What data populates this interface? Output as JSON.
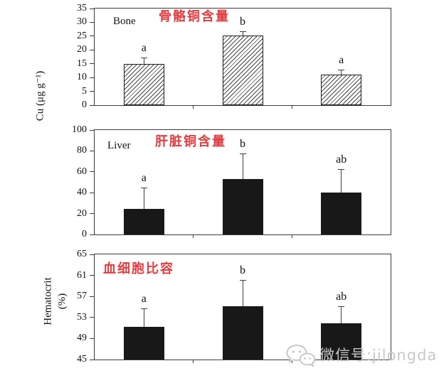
{
  "figure": {
    "background": "#ffffff",
    "accent_red": "#e03c40",
    "axis_color": "#3c3c3c"
  },
  "watermark": {
    "icon": "wechat-icon",
    "text": "微信号:jilongda",
    "color": "#c8c8c8"
  },
  "chart_data": [
    {
      "type": "bar",
      "id": "bone-copper",
      "inner_label": "Bone",
      "title": "骨骼铜含量",
      "title_color": "#e03c40",
      "ylabel": "Cu (μg g⁻¹)",
      "ylim": [
        0,
        35
      ],
      "yticks": [
        35,
        30,
        25,
        20,
        15,
        10,
        5,
        0
      ],
      "grid": false,
      "legend": null,
      "bar_fill": "hatched",
      "bars": [
        {
          "value": 15.0,
          "error_top": 17.0,
          "letter": "a"
        },
        {
          "value": 25.2,
          "error_top": 26.5,
          "letter": "b"
        },
        {
          "value": 11.2,
          "error_top": 12.7,
          "letter": "a"
        }
      ]
    },
    {
      "type": "bar",
      "id": "liver-copper",
      "inner_label": "Liver",
      "title": "肝脏铜含量",
      "title_color": "#e03c40",
      "ylabel": "",
      "ylim": [
        0,
        100
      ],
      "yticks": [
        100,
        80,
        60,
        40,
        20,
        0
      ],
      "grid": false,
      "legend": null,
      "bar_fill": "solid",
      "bars": [
        {
          "value": 24.5,
          "error_top": 44.5,
          "letter": "a"
        },
        {
          "value": 53.0,
          "error_top": 77.0,
          "letter": "b"
        },
        {
          "value": 40.0,
          "error_top": 62.0,
          "letter": "ab"
        }
      ]
    },
    {
      "type": "bar",
      "id": "hematocrit",
      "inner_label": "",
      "title": "血细胞比容",
      "title_color": "#e03c40",
      "ylabel_lines": [
        "Hematocrit",
        "(%)"
      ],
      "ylim": [
        45,
        65
      ],
      "yticks": [
        65,
        61,
        57,
        53,
        49,
        45
      ],
      "grid": false,
      "legend": null,
      "bar_fill": "solid",
      "bars": [
        {
          "value": 51.2,
          "error_top": 54.6,
          "letter": "a"
        },
        {
          "value": 55.2,
          "error_top": 60.0,
          "letter": "b"
        },
        {
          "value": 51.9,
          "error_top": 55.0,
          "letter": "ab"
        }
      ]
    }
  ]
}
